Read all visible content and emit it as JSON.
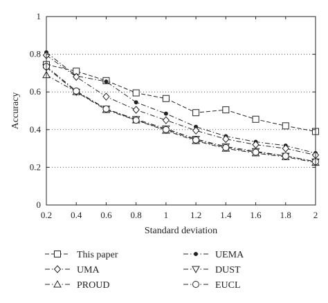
{
  "chart_data": {
    "type": "line",
    "xlabel": "Standard deviation",
    "ylabel": "Accuracy",
    "x": [
      0.2,
      0.4,
      0.6,
      0.8,
      1,
      1.2,
      1.4,
      1.6,
      1.8,
      2
    ],
    "xticks": [
      "0.2",
      "0.4",
      "0.6",
      "0.8",
      "1",
      "1.2",
      "1.4",
      "1.6",
      "1.8",
      "2"
    ],
    "yticks": [
      "0",
      "0.2",
      "0.4",
      "0.6",
      "0.8",
      "1"
    ],
    "xlim": [
      0.2,
      2
    ],
    "ylim": [
      0,
      1
    ],
    "grid": "horizontal dotted",
    "legend_position": "below plot, two columns",
    "series": [
      {
        "name": "This paper",
        "marker": "square",
        "dash": "dashed",
        "values": [
          0.745,
          0.71,
          0.66,
          0.595,
          0.565,
          0.49,
          0.505,
          0.455,
          0.42,
          0.39
        ]
      },
      {
        "name": "UEMA",
        "marker": "filled-circle",
        "dash": "dashdot",
        "values": [
          0.81,
          0.685,
          0.655,
          0.545,
          0.485,
          0.415,
          0.365,
          0.335,
          0.315,
          0.275
        ]
      },
      {
        "name": "UMA",
        "marker": "diamond",
        "dash": "dashdot",
        "values": [
          0.795,
          0.68,
          0.575,
          0.505,
          0.45,
          0.395,
          0.35,
          0.32,
          0.3,
          0.265
        ]
      },
      {
        "name": "DUST",
        "marker": "triangle-down",
        "dash": "dashdot",
        "values": [
          0.73,
          0.6,
          0.51,
          0.455,
          0.405,
          0.35,
          0.31,
          0.285,
          0.26,
          0.23
        ]
      },
      {
        "name": "PROUD",
        "marker": "triangle-up",
        "dash": "dashdot",
        "values": [
          0.69,
          0.6,
          0.505,
          0.45,
          0.395,
          0.34,
          0.3,
          0.275,
          0.255,
          0.225
        ]
      },
      {
        "name": "EUCL",
        "marker": "circle",
        "dash": "dashdot",
        "values": [
          0.735,
          0.605,
          0.51,
          0.45,
          0.4,
          0.345,
          0.305,
          0.28,
          0.26,
          0.23
        ]
      }
    ]
  }
}
